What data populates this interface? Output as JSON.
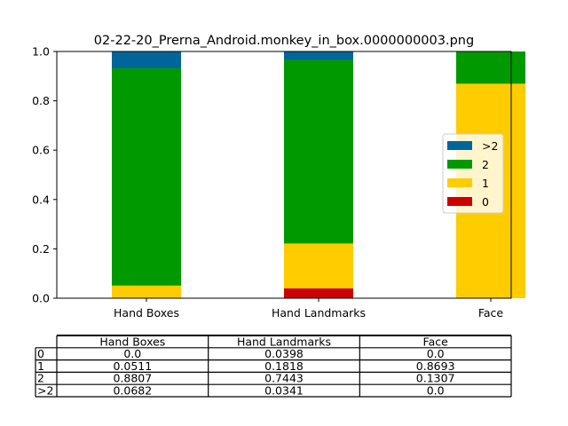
{
  "chart_data": {
    "type": "bar",
    "stacked": true,
    "title": "02-22-20_Prerna_Android.monkey_in_box.0000000003.png",
    "categories": [
      "Hand Boxes",
      "Hand Landmarks",
      "Face"
    ],
    "series": [
      {
        "name": "0",
        "color": "#cc0000",
        "values": [
          0.0,
          0.0398,
          0.0
        ]
      },
      {
        "name": "1",
        "color": "#ffcc00",
        "values": [
          0.0511,
          0.1818,
          0.8693
        ]
      },
      {
        "name": "2",
        "color": "#009900",
        "values": [
          0.8807,
          0.7443,
          0.1307
        ]
      },
      {
        "name": ">2",
        "color": "#006699",
        "values": [
          0.0682,
          0.0341,
          0.0
        ]
      }
    ],
    "ylim": [
      0,
      1.0
    ],
    "yticks": [
      "0.0",
      "0.2",
      "0.4",
      "0.6",
      "0.8",
      "1.0"
    ],
    "legend_order": [
      ">2",
      "2",
      "1",
      "0"
    ],
    "legend_position": "right",
    "grid": false,
    "table": {
      "col_labels": [
        "Hand Boxes",
        "Hand Landmarks",
        "Face"
      ],
      "row_labels": [
        "0",
        "1",
        "2",
        ">2"
      ],
      "cells": [
        [
          "0.0",
          "0.0398",
          "0.0"
        ],
        [
          "0.0511",
          "0.1818",
          "0.8693"
        ],
        [
          "0.8807",
          "0.7443",
          "0.1307"
        ],
        [
          "0.0682",
          "0.0341",
          "0.0"
        ]
      ]
    }
  }
}
